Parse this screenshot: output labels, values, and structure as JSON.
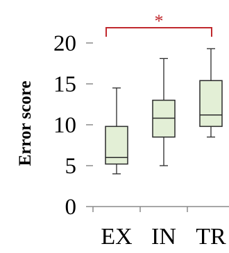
{
  "chart_data": {
    "type": "box",
    "ylabel": "Error score",
    "ylim": [
      0,
      20
    ],
    "y_ticks": [
      {
        "value": 0,
        "label": "0"
      },
      {
        "value": 5,
        "label": "5"
      },
      {
        "value": 10,
        "label": "10"
      },
      {
        "value": 15,
        "label": "15"
      },
      {
        "value": 20,
        "label": "20"
      }
    ],
    "categories": [
      "EX",
      "IN",
      "TR"
    ],
    "boxes": [
      {
        "category": "EX",
        "min": 4.0,
        "q1": 5.2,
        "median": 6.0,
        "q3": 9.8,
        "max": 14.5
      },
      {
        "category": "IN",
        "min": 5.0,
        "q1": 8.5,
        "median": 10.8,
        "q3": 13.0,
        "max": 18.1
      },
      {
        "category": "TR",
        "min": 8.5,
        "q1": 9.8,
        "median": 11.2,
        "q3": 15.4,
        "max": 19.3
      }
    ],
    "significance": {
      "from": "EX",
      "to": "TR",
      "label": "*"
    },
    "grid": false,
    "colors": {
      "box_fill": "#e3efd6",
      "box_stroke": "#2a2a2a",
      "bracket": "#c0282d",
      "axis": "#8a8a8a"
    }
  }
}
